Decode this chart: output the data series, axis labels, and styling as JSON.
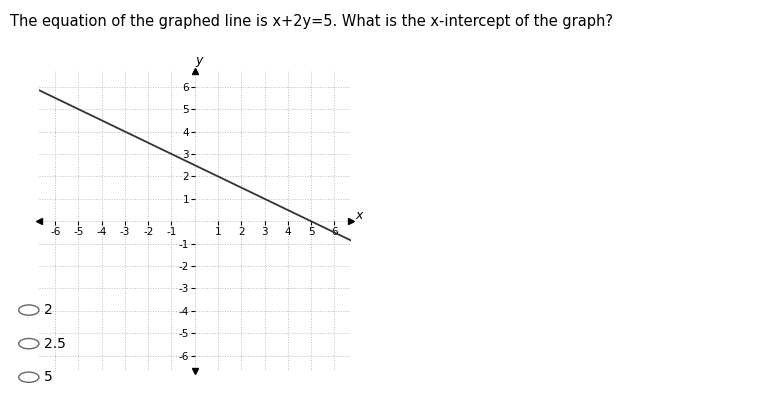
{
  "title": "The equation of the graphed line is x+2y=5. What is the x-intercept of the graph?",
  "title_fontsize": 10.5,
  "xlim": [
    -6.7,
    6.7
  ],
  "ylim": [
    -6.7,
    6.7
  ],
  "xlabel": "x",
  "ylabel": "y",
  "line_color": "#333333",
  "line_width": 1.3,
  "grid_color": "#bbbbbb",
  "axis_color": "#000000",
  "bg_color": "#ffffff",
  "choices": [
    "2",
    "2.5",
    "5"
  ],
  "choices_fontsize": 10,
  "tick_fontsize": 7.5
}
